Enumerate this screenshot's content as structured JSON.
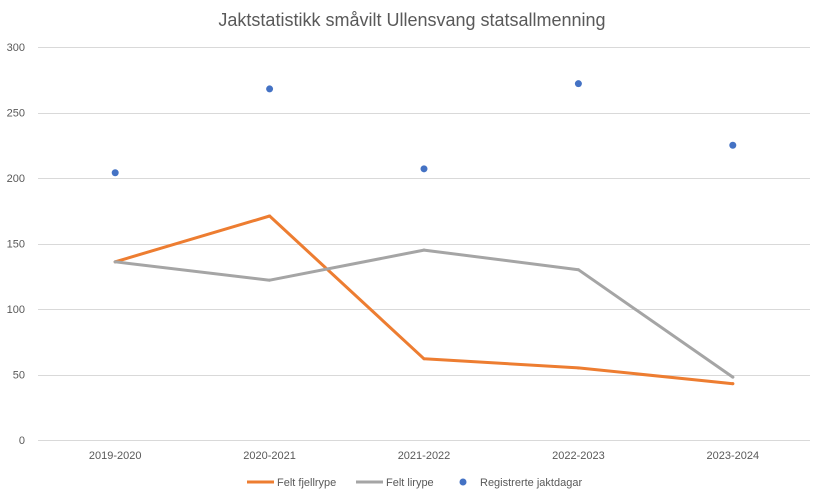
{
  "chart_data": {
    "type": "line",
    "title": "Jaktstatistikk småvilt Ullensvang statsallmenning",
    "categories": [
      "2019-2020",
      "2020-2021",
      "2021-2022",
      "2022-2023",
      "2023-2024"
    ],
    "ylim": [
      0,
      300
    ],
    "yticks": [
      0,
      50,
      100,
      150,
      200,
      250,
      300
    ],
    "grid": true,
    "legend_position": "bottom",
    "series": [
      {
        "name": "Felt fjellrype",
        "kind": "line",
        "color": "#ED7D31",
        "values": [
          136,
          171,
          62,
          55,
          43
        ]
      },
      {
        "name": "Felt lirype",
        "kind": "line",
        "color": "#A5A5A5",
        "values": [
          136,
          122,
          145,
          130,
          48
        ]
      },
      {
        "name": "Registrerte jaktdagar",
        "kind": "scatter",
        "color": "#4472C4",
        "values": [
          204,
          268,
          207,
          272,
          225
        ]
      }
    ]
  }
}
